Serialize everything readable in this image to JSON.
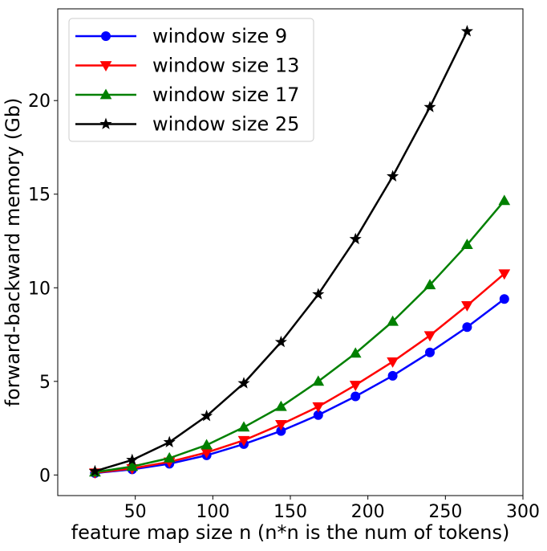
{
  "chart_data": {
    "type": "line",
    "title": "",
    "xlabel": "feature map size n (n*n is the num of tokens)",
    "ylabel": "forward-backward memory (Gb)",
    "xlim": [
      0,
      300
    ],
    "ylim": [
      -1.1,
      24.9
    ],
    "xticks": [
      50,
      100,
      150,
      200,
      250,
      300
    ],
    "yticks": [
      0,
      5,
      10,
      15,
      20
    ],
    "grid": false,
    "legend_position": "top-left",
    "series": [
      {
        "name": "window size 9",
        "color": "#0000ff",
        "marker": "circle",
        "x": [
          24,
          48,
          72,
          96,
          120,
          144,
          168,
          192,
          216,
          240,
          264,
          288
        ],
        "y": [
          0.1,
          0.3,
          0.6,
          1.05,
          1.65,
          2.35,
          3.2,
          4.2,
          5.3,
          6.55,
          7.9,
          9.4
        ]
      },
      {
        "name": "window size 13",
        "color": "#ff0000",
        "marker": "triangle-down",
        "x": [
          24,
          48,
          72,
          96,
          120,
          144,
          168,
          192,
          216,
          240,
          264,
          288
        ],
        "y": [
          0.12,
          0.35,
          0.7,
          1.2,
          1.85,
          2.7,
          3.65,
          4.8,
          6.05,
          7.45,
          9.05,
          10.75
        ]
      },
      {
        "name": "window size 17",
        "color": "#008000",
        "marker": "triangle-up",
        "x": [
          24,
          48,
          72,
          96,
          120,
          144,
          168,
          192,
          216,
          240,
          264,
          288
        ],
        "y": [
          0.15,
          0.45,
          0.9,
          1.6,
          2.55,
          3.65,
          5.0,
          6.5,
          8.2,
          10.15,
          12.3,
          14.65
        ]
      },
      {
        "name": "window size 25",
        "color": "#000000",
        "marker": "star",
        "x": [
          24,
          48,
          72,
          96,
          120,
          144,
          168,
          192,
          216,
          240,
          264
        ],
        "y": [
          0.2,
          0.8,
          1.75,
          3.15,
          4.9,
          7.1,
          9.65,
          12.6,
          15.95,
          19.65,
          23.7
        ]
      }
    ]
  }
}
